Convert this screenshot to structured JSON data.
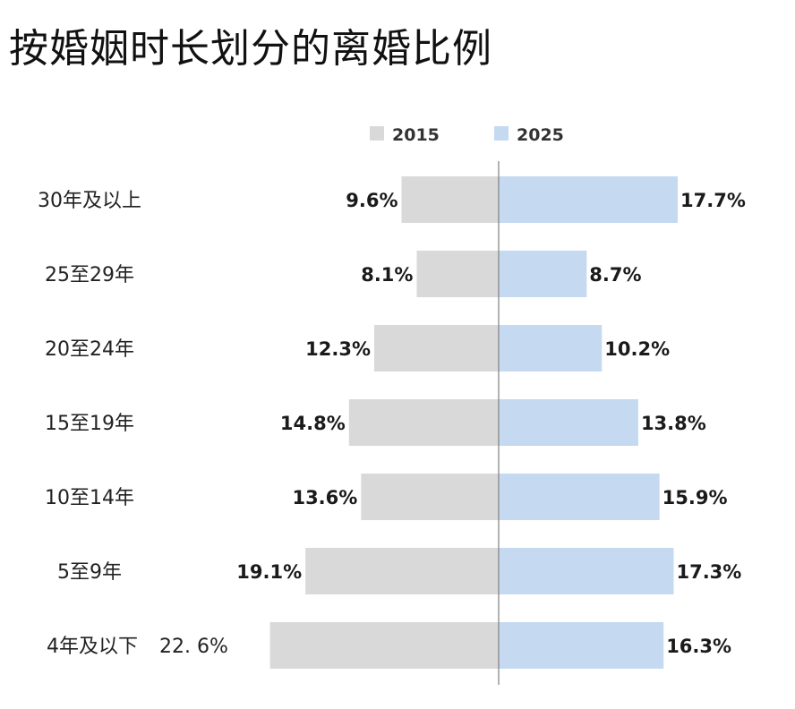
{
  "chart_data": {
    "type": "bar",
    "orientation": "horizontal-diverging",
    "title": "按婚姻时长划分的离婚比例",
    "categories": [
      "30年及以上",
      "25至29年",
      "20至24年",
      "15至19年",
      "10至14年",
      "5至9年",
      "4年及以下"
    ],
    "series": [
      {
        "name": "2015",
        "color": "#d9d9d9",
        "direction": "left",
        "values": [
          9.6,
          8.1,
          12.3,
          14.8,
          13.6,
          19.1,
          22.6
        ],
        "labels": [
          "9.6%",
          "8.1%",
          "12.3%",
          "14.8%",
          "13.6%",
          "19.1%",
          "22. 6%"
        ]
      },
      {
        "name": "2025",
        "color": "#c5d9f1",
        "direction": "right",
        "values": [
          17.7,
          8.7,
          10.2,
          13.8,
          15.9,
          17.3,
          16.3
        ],
        "labels": [
          "17.7%",
          "8.7%",
          "10.2%",
          "13.8%",
          "15.9%",
          "17.3%",
          "16.3%"
        ]
      }
    ],
    "legend_position": "top",
    "grid": false,
    "axis_color": "#808080"
  }
}
